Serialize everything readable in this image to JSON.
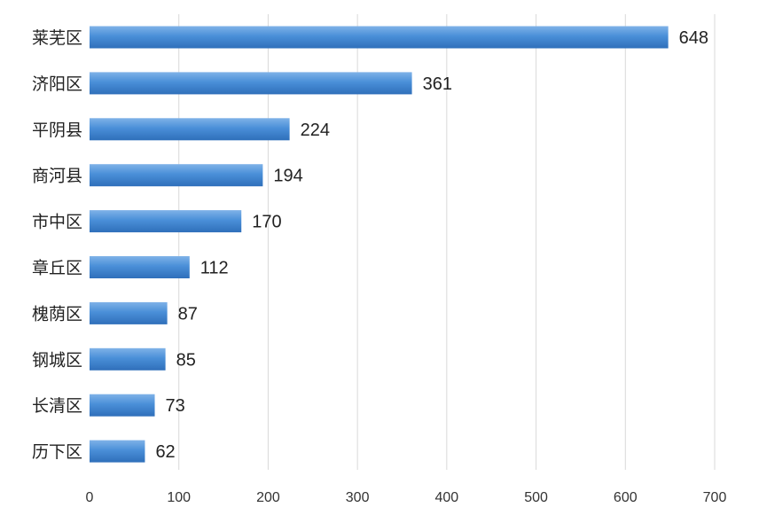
{
  "chart_data": {
    "type": "bar",
    "orientation": "horizontal",
    "categories": [
      "莱芜区",
      "济阳区",
      "平阴县",
      "商河县",
      "市中区",
      "章丘区",
      "槐荫区",
      "钢城区",
      "长清区",
      "历下区"
    ],
    "values": [
      648,
      361,
      224,
      194,
      170,
      112,
      87,
      85,
      73,
      62
    ],
    "data_labels": [
      "648",
      "361",
      "224",
      "194",
      "170",
      "112",
      "87",
      "85",
      "73",
      "62"
    ],
    "x_ticks": [
      "0",
      "100",
      "200",
      "300",
      "400",
      "500",
      "600",
      "700"
    ],
    "xlim": [
      0,
      700
    ],
    "grid": "vertical",
    "legend": "none",
    "title": "",
    "xlabel": "",
    "ylabel": "",
    "colors": {
      "bar_top": "#7fb2e8",
      "bar_mid": "#4a8fd8",
      "bar_bottom": "#2f6fba",
      "grid": "#d9d9d9",
      "text": "#222222"
    }
  }
}
